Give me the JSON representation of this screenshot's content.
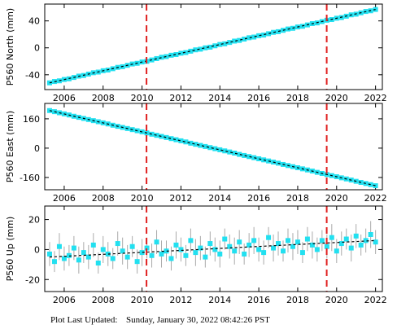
{
  "chart_data": [
    {
      "type": "scatter",
      "ylabel": "P560 North (mm)",
      "color": "#22e0f0",
      "x": [
        2005.25,
        2005.5,
        2005.75,
        2006,
        2006.25,
        2006.5,
        2006.75,
        2007,
        2007.25,
        2007.5,
        2007.75,
        2008,
        2008.25,
        2008.5,
        2008.75,
        2009,
        2009.25,
        2009.5,
        2009.75,
        2010,
        2010.25,
        2010.5,
        2010.75,
        2011,
        2011.25,
        2011.5,
        2011.75,
        2012,
        2012.25,
        2012.5,
        2012.75,
        2013,
        2013.25,
        2013.5,
        2013.75,
        2014,
        2014.25,
        2014.5,
        2014.75,
        2015,
        2015.25,
        2015.5,
        2015.75,
        2016,
        2016.25,
        2016.5,
        2016.75,
        2017,
        2017.25,
        2017.5,
        2017.75,
        2018,
        2018.25,
        2018.5,
        2018.75,
        2019,
        2019.25,
        2019.5,
        2019.75,
        2020,
        2020.25,
        2020.5,
        2020.75,
        2021,
        2021.25,
        2021.5,
        2021.75,
        2022
      ],
      "values": [
        -52,
        -50,
        -49,
        -47,
        -46,
        -44,
        -42,
        -41,
        -39,
        -37,
        -36,
        -34,
        -33,
        -31,
        -29,
        -28,
        -26,
        -24,
        -23,
        -21,
        -20,
        -18,
        -16,
        -14,
        -13,
        -11,
        -10,
        -8,
        -7,
        -5,
        -3,
        -2,
        0,
        1,
        3,
        5,
        6,
        8,
        10,
        11,
        13,
        15,
        16,
        18,
        19,
        21,
        23,
        24,
        26,
        28,
        29,
        31,
        32,
        34,
        36,
        37,
        39,
        41,
        42,
        44,
        45,
        47,
        49,
        50,
        52,
        54,
        55,
        57
      ],
      "model": {
        "x": [
          2005.25,
          2022
        ],
        "values": [
          -52,
          57
        ],
        "color": "#000000"
      },
      "vlines": [
        2010.23,
        2019.49
      ],
      "vline_color": "#e02020",
      "xlim": [
        2005,
        2022.35
      ],
      "ylim": [
        -62,
        65
      ],
      "xticks": [
        2006,
        2008,
        2010,
        2012,
        2014,
        2016,
        2018,
        2020,
        2022
      ],
      "yticks": [
        -40,
        0,
        40
      ]
    },
    {
      "type": "scatter",
      "ylabel": "P560 East (mm)",
      "color": "#22e0f0",
      "x": [
        2005.25,
        2005.5,
        2005.75,
        2006,
        2006.25,
        2006.5,
        2006.75,
        2007,
        2007.25,
        2007.5,
        2007.75,
        2008,
        2008.25,
        2008.5,
        2008.75,
        2009,
        2009.25,
        2009.5,
        2009.75,
        2010,
        2010.25,
        2010.5,
        2010.75,
        2011,
        2011.25,
        2011.5,
        2011.75,
        2012,
        2012.25,
        2012.5,
        2012.75,
        2013,
        2013.25,
        2013.5,
        2013.75,
        2014,
        2014.25,
        2014.5,
        2014.75,
        2015,
        2015.25,
        2015.5,
        2015.75,
        2016,
        2016.25,
        2016.5,
        2016.75,
        2017,
        2017.25,
        2017.5,
        2017.75,
        2018,
        2018.25,
        2018.5,
        2018.75,
        2019,
        2019.25,
        2019.5,
        2019.75,
        2020,
        2020.25,
        2020.5,
        2020.75,
        2021,
        2021.25,
        2021.5,
        2021.75,
        2022
      ],
      "values": [
        205,
        199,
        193,
        187,
        181,
        174,
        168,
        162,
        156,
        150,
        144,
        138,
        132,
        125,
        119,
        113,
        107,
        101,
        95,
        89,
        83,
        76,
        70,
        64,
        58,
        52,
        46,
        40,
        34,
        27,
        21,
        15,
        9,
        3,
        -3,
        -9,
        -15,
        -21,
        -27,
        -34,
        -40,
        -46,
        -52,
        -58,
        -64,
        -70,
        -76,
        -82,
        -89,
        -95,
        -101,
        -107,
        -113,
        -119,
        -125,
        -132,
        -138,
        -144,
        -150,
        -156,
        -162,
        -168,
        -174,
        -181,
        -187,
        -193,
        -199,
        -205
      ],
      "model": {
        "x": [
          2005.25,
          2022
        ],
        "values": [
          205,
          -205
        ],
        "color": "#000000"
      },
      "vlines": [
        2010.23,
        2019.49
      ],
      "vline_color": "#e02020",
      "xlim": [
        2005,
        2022.35
      ],
      "ylim": [
        -227,
        244
      ],
      "xticks": [
        2006,
        2008,
        2010,
        2012,
        2014,
        2016,
        2018,
        2020,
        2022
      ],
      "yticks": [
        -160,
        0,
        160
      ]
    },
    {
      "type": "errorbar",
      "ylabel": "P560 Up (mm)",
      "color": "#22e0f0",
      "error_color": "#aaaaaa",
      "x": [
        2005.25,
        2005.5,
        2005.75,
        2006,
        2006.25,
        2006.5,
        2006.75,
        2007,
        2007.25,
        2007.5,
        2007.75,
        2008,
        2008.25,
        2008.5,
        2008.75,
        2009,
        2009.25,
        2009.5,
        2009.75,
        2010,
        2010.25,
        2010.5,
        2010.75,
        2011,
        2011.25,
        2011.5,
        2011.75,
        2012,
        2012.25,
        2012.5,
        2012.75,
        2013,
        2013.25,
        2013.5,
        2013.75,
        2014,
        2014.25,
        2014.5,
        2014.75,
        2015,
        2015.25,
        2015.5,
        2015.75,
        2016,
        2016.25,
        2016.5,
        2016.75,
        2017,
        2017.25,
        2017.5,
        2017.75,
        2018,
        2018.25,
        2018.5,
        2018.75,
        2019,
        2019.25,
        2019.5,
        2019.75,
        2020,
        2020.25,
        2020.5,
        2020.75,
        2021,
        2021.25,
        2021.5,
        2021.75,
        2022
      ],
      "values": [
        -3,
        -8,
        2,
        -6,
        -4,
        1,
        -7,
        -2,
        -5,
        3,
        -9,
        0,
        -3,
        -6,
        4,
        -1,
        -5,
        2,
        -8,
        -2,
        1,
        -4,
        5,
        -3,
        -1,
        -6,
        3,
        0,
        -4,
        6,
        -2,
        1,
        -5,
        4,
        0,
        -3,
        7,
        2,
        -1,
        5,
        -3,
        3,
        6,
        0,
        -2,
        8,
        1,
        4,
        -1,
        6,
        2,
        5,
        -2,
        7,
        3,
        0,
        6,
        2,
        8,
        -1,
        4,
        7,
        1,
        9,
        3,
        6,
        10,
        5
      ],
      "errors": [
        8,
        7,
        9,
        8,
        7,
        8,
        9,
        7,
        8,
        8,
        7,
        9,
        8,
        7,
        8,
        9,
        8,
        7,
        8,
        9,
        7,
        8,
        8,
        9,
        7,
        8,
        9,
        8,
        7,
        8,
        9,
        8,
        7,
        8,
        8,
        9,
        7,
        8,
        9,
        8,
        7,
        8,
        9,
        8,
        8,
        7,
        9,
        8,
        7,
        8,
        9,
        8,
        7,
        8,
        9,
        8,
        7,
        8,
        9,
        8,
        8,
        7,
        9,
        8,
        7,
        8,
        9,
        8
      ],
      "model": {
        "x": [
          2005.25,
          2022
        ],
        "values": [
          -5,
          6
        ],
        "color": "#000000"
      },
      "vlines": [
        2010.23,
        2019.49
      ],
      "vline_color": "#e02020",
      "xlim": [
        2005,
        2022.35
      ],
      "ylim": [
        -28,
        29
      ],
      "xticks": [
        2006,
        2008,
        2010,
        2012,
        2014,
        2016,
        2018,
        2020,
        2022
      ],
      "yticks": [
        -20,
        0,
        20
      ]
    }
  ],
  "footer": {
    "label": "Plot Last Updated:",
    "timestamp": "Sunday, January 30, 2022 08:42:26 PST"
  }
}
